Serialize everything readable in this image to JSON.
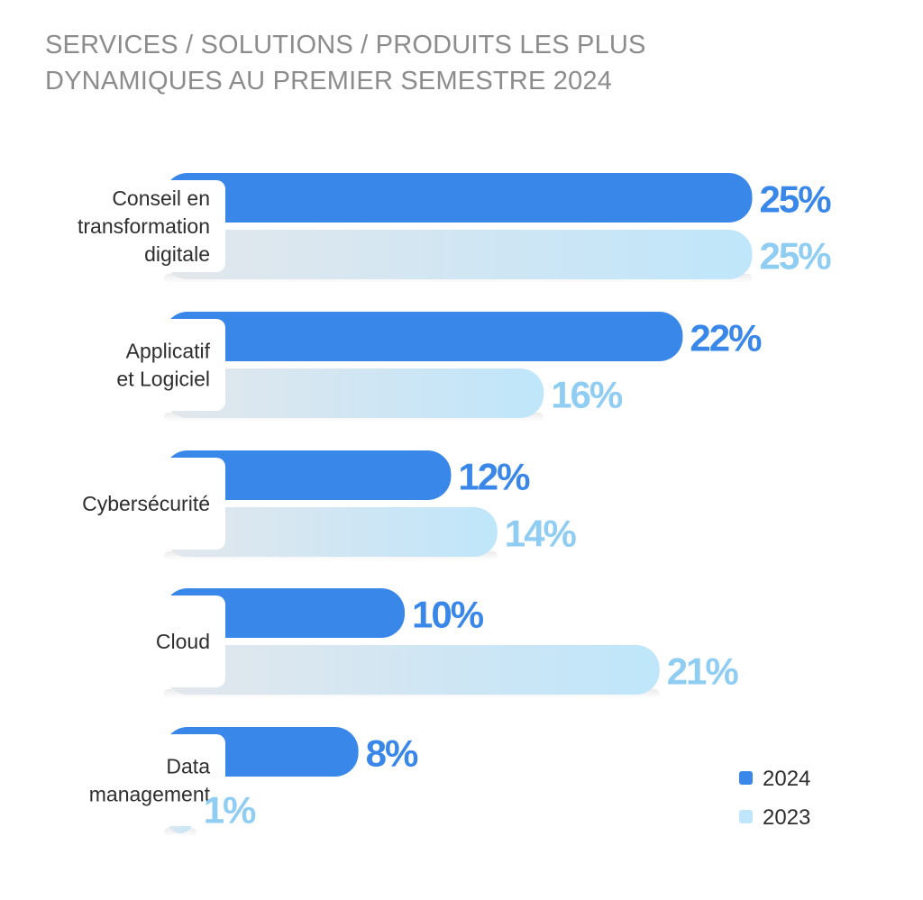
{
  "title": {
    "line1": "SERVICES / SOLUTIONS / PRODUITS LES PLUS",
    "line2": "DYNAMIQUES AU PREMIER SEMESTRE 2024"
  },
  "colors": {
    "series_2024": "#3a87ea",
    "series_2023_start": "#e3e7ec",
    "series_2023_end": "#bfe6fa",
    "label_2024": "#3a87ea",
    "label_2023": "#8fcdf2"
  },
  "chart_data": {
    "type": "bar",
    "orientation": "horizontal",
    "title": "SERVICES / SOLUTIONS / PRODUITS LES PLUS DYNAMIQUES AU PREMIER SEMESTRE 2024",
    "categories": [
      [
        "Conseil en",
        "transformation",
        "digitale"
      ],
      [
        "Applicatif",
        "et Logiciel"
      ],
      [
        "Cybersécurité"
      ],
      [
        "Cloud"
      ],
      [
        "Data",
        "management"
      ]
    ],
    "series": [
      {
        "name": "2024",
        "values": [
          25,
          22,
          12,
          10,
          8
        ],
        "labels": [
          "25%",
          "22%",
          "12%",
          "10%",
          "8%"
        ]
      },
      {
        "name": "2023",
        "values": [
          25,
          16,
          14,
          21,
          1
        ],
        "labels": [
          "25%",
          "16%",
          "14%",
          "21%",
          "1%"
        ]
      }
    ],
    "value_unit": "%",
    "legend_position": "bottom-right",
    "grid": false
  }
}
